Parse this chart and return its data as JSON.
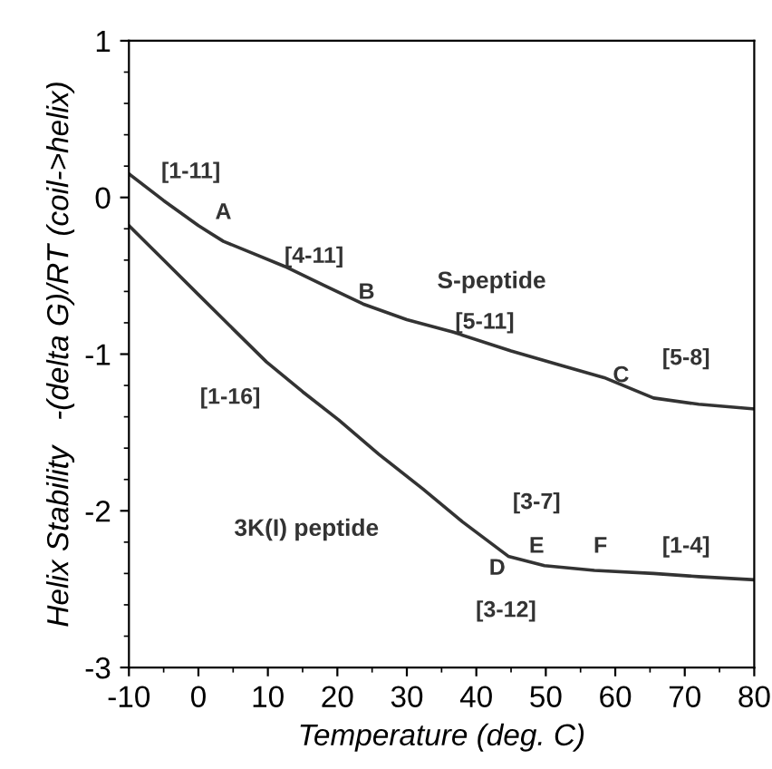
{
  "chart_data": {
    "type": "line",
    "xlabel": "Temperature (deg. C)",
    "ylabel": "Helix Stability   -(delta G)/RT (coil->helix)",
    "series": [
      {
        "name": "S-peptide",
        "color": "#333333",
        "x": [
          -10,
          -5,
          0,
          3.6,
          8,
          12.4,
          18,
          23.7,
          30,
          36.7,
          45,
          52,
          58.4,
          65.5,
          72,
          80
        ],
        "values": [
          0.15,
          -0.02,
          -0.18,
          -0.28,
          -0.36,
          -0.44,
          -0.56,
          -0.68,
          -0.78,
          -0.86,
          -0.98,
          -1.07,
          -1.15,
          -1.28,
          -1.32,
          -1.35
        ]
      },
      {
        "name": "3K(I) peptide",
        "color": "#333333",
        "x": [
          -10,
          -5,
          0,
          5,
          9.8,
          15,
          20.2,
          26,
          32.3,
          38,
          44.6,
          49.8,
          57,
          65.5,
          72,
          80
        ],
        "values": [
          -0.18,
          -0.4,
          -0.62,
          -0.84,
          -1.05,
          -1.24,
          -1.42,
          -1.64,
          -1.86,
          -2.07,
          -2.29,
          -2.35,
          -2.38,
          -2.4,
          -2.42,
          -2.44
        ]
      }
    ],
    "xlim": [
      -10,
      80
    ],
    "xticks": [
      -10,
      0,
      10,
      20,
      30,
      40,
      50,
      60,
      70,
      80
    ],
    "ylim": [
      -3,
      1
    ],
    "yticks": [
      -3,
      -2,
      -1,
      0,
      1
    ],
    "annotations": [
      "[1-11]",
      "A",
      "[4-11]",
      "B",
      "[5-11]",
      "C",
      "[5-8]",
      "[1-16]",
      "[3-7]",
      "D",
      "E",
      "F",
      "[1-4]",
      "[3-12]"
    ],
    "grid": false,
    "legend": false,
    "marker": "none",
    "line_style": "solid"
  }
}
